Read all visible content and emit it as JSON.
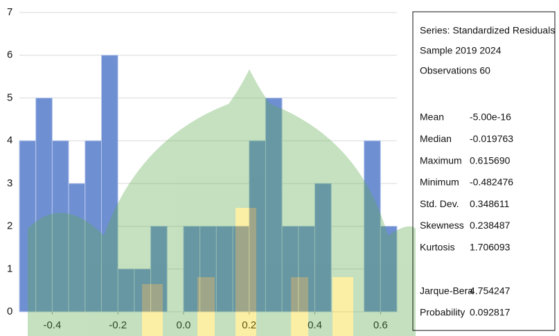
{
  "chart_data": {
    "type": "histogram",
    "bins": [
      -0.5,
      -0.45,
      -0.4,
      -0.35,
      -0.3,
      -0.25,
      -0.2,
      -0.15,
      -0.1,
      -0.05,
      0,
      0.05,
      0.1,
      0.15,
      0.2,
      0.25,
      0.3,
      0.35,
      0.4,
      0.45,
      0.5,
      0.55,
      0.6,
      0.65
    ],
    "values": [
      4,
      5,
      4,
      3,
      4,
      6,
      1,
      1,
      2,
      0,
      2,
      2,
      2,
      2,
      4,
      5,
      2,
      2,
      3,
      0,
      0,
      4,
      2
    ],
    "color": "#6f8fd3",
    "xlim": [
      -0.5,
      0.65
    ],
    "xticks": [
      -0.4,
      -0.2,
      {
        "value": 0,
        "label": "0.0"
      },
      0.2,
      0.4,
      0.6
    ],
    "ylim": [
      0,
      7
    ],
    "yticks": [
      0,
      1,
      2,
      3,
      4,
      5,
      6,
      7
    ],
    "grid": true,
    "stats_header": [
      "Series: Standardized Residuals",
      "Sample 2019 2024",
      "Observations 60"
    ],
    "stats": [
      {
        "label": "Mean",
        "value": "-5.00e-16"
      },
      {
        "label": "Median",
        "value": "-0.019763"
      },
      {
        "label": "Maximum",
        "value": "0.615690"
      },
      {
        "label": "Minimum",
        "value": "-0.482476"
      },
      {
        "label": "Std. Dev.",
        "value": "0.348611"
      },
      {
        "label": "Skewness",
        "value": "0.238487"
      },
      {
        "label": "Kurtosis",
        "value": "1.706093"
      }
    ],
    "tests": [
      {
        "label": "Jarque-Bera",
        "value": "4.754247"
      },
      {
        "label": "Probability",
        "value": "0.092817"
      }
    ]
  }
}
